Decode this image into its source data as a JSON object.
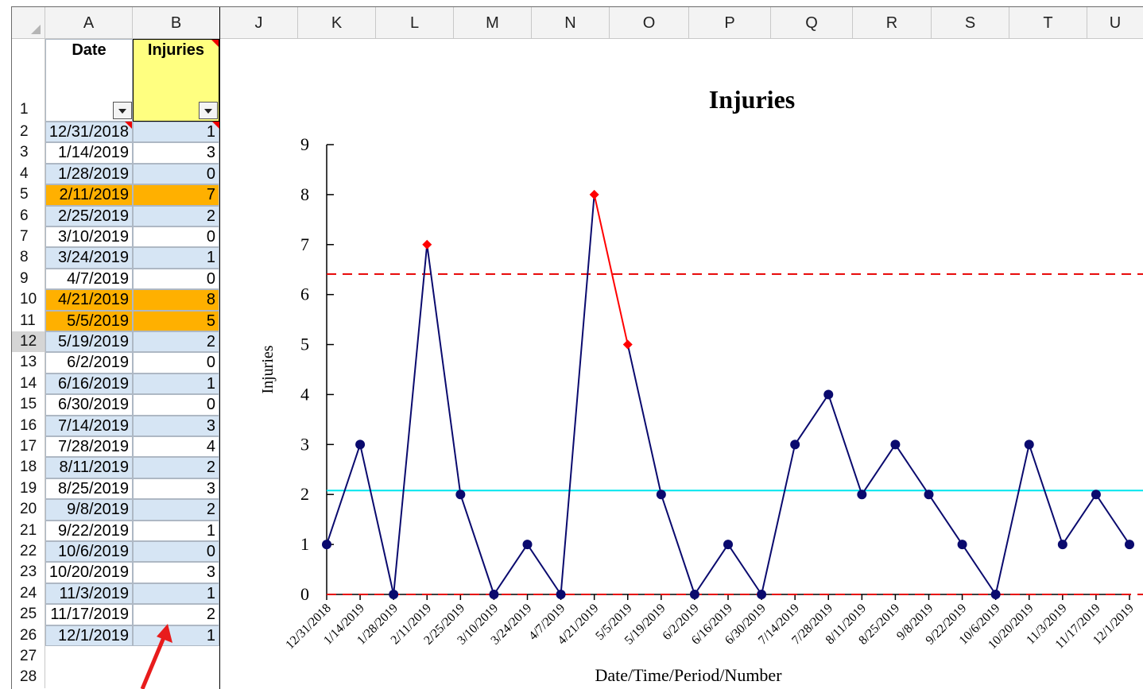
{
  "columns": [
    "A",
    "B",
    "J",
    "K",
    "L",
    "M",
    "N",
    "O",
    "P",
    "Q",
    "R",
    "S",
    "T",
    "U"
  ],
  "row_numbers": [
    "1",
    "2",
    "3",
    "4",
    "5",
    "6",
    "7",
    "8",
    "9",
    "10",
    "11",
    "12",
    "13",
    "14",
    "15",
    "16",
    "17",
    "18",
    "19",
    "20",
    "21",
    "22",
    "23",
    "24",
    "25",
    "26",
    "27",
    "28"
  ],
  "headers": {
    "date": "Date",
    "injuries": "Injuries"
  },
  "rows": [
    {
      "date": "12/31/2018",
      "injuries": "1",
      "hl": "blue"
    },
    {
      "date": "1/14/2019",
      "injuries": "3",
      "hl": "none"
    },
    {
      "date": "1/28/2019",
      "injuries": "0",
      "hl": "blue"
    },
    {
      "date": "2/11/2019",
      "injuries": "7",
      "hl": "orange"
    },
    {
      "date": "2/25/2019",
      "injuries": "2",
      "hl": "blue"
    },
    {
      "date": "3/10/2019",
      "injuries": "0",
      "hl": "none"
    },
    {
      "date": "3/24/2019",
      "injuries": "1",
      "hl": "blue"
    },
    {
      "date": "4/7/2019",
      "injuries": "0",
      "hl": "none"
    },
    {
      "date": "4/21/2019",
      "injuries": "8",
      "hl": "orange"
    },
    {
      "date": "5/5/2019",
      "injuries": "5",
      "hl": "orange"
    },
    {
      "date": "5/19/2019",
      "injuries": "2",
      "hl": "blue"
    },
    {
      "date": "6/2/2019",
      "injuries": "0",
      "hl": "none"
    },
    {
      "date": "6/16/2019",
      "injuries": "1",
      "hl": "blue"
    },
    {
      "date": "6/30/2019",
      "injuries": "0",
      "hl": "none"
    },
    {
      "date": "7/14/2019",
      "injuries": "3",
      "hl": "blue"
    },
    {
      "date": "7/28/2019",
      "injuries": "4",
      "hl": "none"
    },
    {
      "date": "8/11/2019",
      "injuries": "2",
      "hl": "blue"
    },
    {
      "date": "8/25/2019",
      "injuries": "3",
      "hl": "none"
    },
    {
      "date": "9/8/2019",
      "injuries": "2",
      "hl": "blue"
    },
    {
      "date": "9/22/2019",
      "injuries": "1",
      "hl": "none"
    },
    {
      "date": "10/6/2019",
      "injuries": "0",
      "hl": "blue"
    },
    {
      "date": "10/20/2019",
      "injuries": "3",
      "hl": "none"
    },
    {
      "date": "11/3/2019",
      "injuries": "1",
      "hl": "blue"
    },
    {
      "date": "11/17/2019",
      "injuries": "2",
      "hl": "none"
    },
    {
      "date": "12/1/2019",
      "injuries": "1",
      "hl": "blue"
    }
  ],
  "selected_row": "12",
  "colors": {
    "blue": "#d6e5f4",
    "orange": "#ffb000",
    "yellow": "#ffff80",
    "center": "#00e5ee",
    "limit": "#e60000",
    "line": "#0a0a6e",
    "special": "#ff0000"
  },
  "chart_data": {
    "type": "line",
    "title": "Injuries",
    "xlabel": "Date/Time/Period/Number",
    "ylabel": "Injuries",
    "ylim": [
      0,
      9
    ],
    "yticks": [
      0,
      1,
      2,
      3,
      4,
      5,
      6,
      7,
      8,
      9
    ],
    "x": [
      "12/31/2018",
      "1/14/2019",
      "1/28/2019",
      "2/11/2019",
      "2/25/2019",
      "3/10/2019",
      "3/24/2019",
      "4/7/2019",
      "4/21/2019",
      "5/5/2019",
      "5/19/2019",
      "6/2/2019",
      "6/16/2019",
      "6/30/2019",
      "7/14/2019",
      "7/28/2019",
      "8/11/2019",
      "8/25/2019",
      "9/8/2019",
      "9/22/2019",
      "10/6/2019",
      "10/20/2019",
      "11/3/2019",
      "11/17/2019",
      "12/1/2019"
    ],
    "series": [
      {
        "values": [
          1,
          3,
          0,
          7,
          2,
          0,
          1,
          0,
          8,
          5,
          2,
          0,
          1,
          0,
          3,
          4,
          2,
          3,
          2,
          1,
          0,
          3,
          1,
          2,
          1
        ]
      }
    ],
    "special_points": [
      3,
      8,
      9
    ],
    "center_line": 2.08,
    "upper_limit": 6.41,
    "lower_limit": 0,
    "grid": false,
    "legend": "none"
  }
}
